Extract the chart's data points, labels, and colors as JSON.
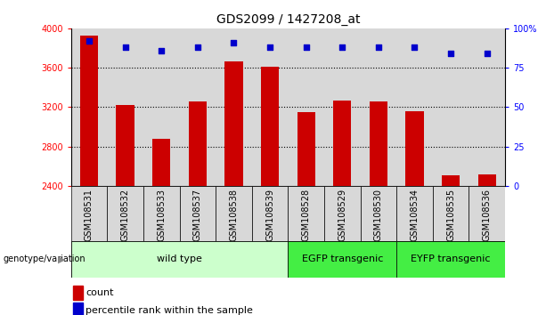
{
  "title": "GDS2099 / 1427208_at",
  "samples": [
    "GSM108531",
    "GSM108532",
    "GSM108533",
    "GSM108537",
    "GSM108538",
    "GSM108539",
    "GSM108528",
    "GSM108529",
    "GSM108530",
    "GSM108534",
    "GSM108535",
    "GSM108536"
  ],
  "counts": [
    3930,
    3220,
    2880,
    3260,
    3660,
    3610,
    3150,
    3270,
    3260,
    3160,
    2510,
    2520
  ],
  "percentiles": [
    92,
    88,
    86,
    88,
    91,
    88,
    88,
    88,
    88,
    88,
    84,
    84
  ],
  "ylim_left": [
    2400,
    4000
  ],
  "ylim_right": [
    0,
    100
  ],
  "yticks_left": [
    2400,
    2800,
    3200,
    3600,
    4000
  ],
  "yticks_right": [
    0,
    25,
    50,
    75,
    100
  ],
  "ytick_labels_right": [
    "0",
    "25",
    "50",
    "75",
    "100%"
  ],
  "groups": [
    {
      "label": "wild type",
      "start": 0,
      "end": 6,
      "color": "#ccffcc"
    },
    {
      "label": "EGFP transgenic",
      "start": 6,
      "end": 9,
      "color": "#44ee44"
    },
    {
      "label": "EYFP transgenic",
      "start": 9,
      "end": 12,
      "color": "#44ee44"
    }
  ],
  "col_bg_color": "#d8d8d8",
  "bar_color": "#cc0000",
  "dot_color": "#0000cc",
  "bar_width": 0.5,
  "genotype_label": "genotype/variation",
  "legend_count_label": "count",
  "legend_percentile_label": "percentile rank within the sample",
  "title_fontsize": 10,
  "tick_fontsize": 7,
  "group_fontsize": 8,
  "legend_fontsize": 8
}
